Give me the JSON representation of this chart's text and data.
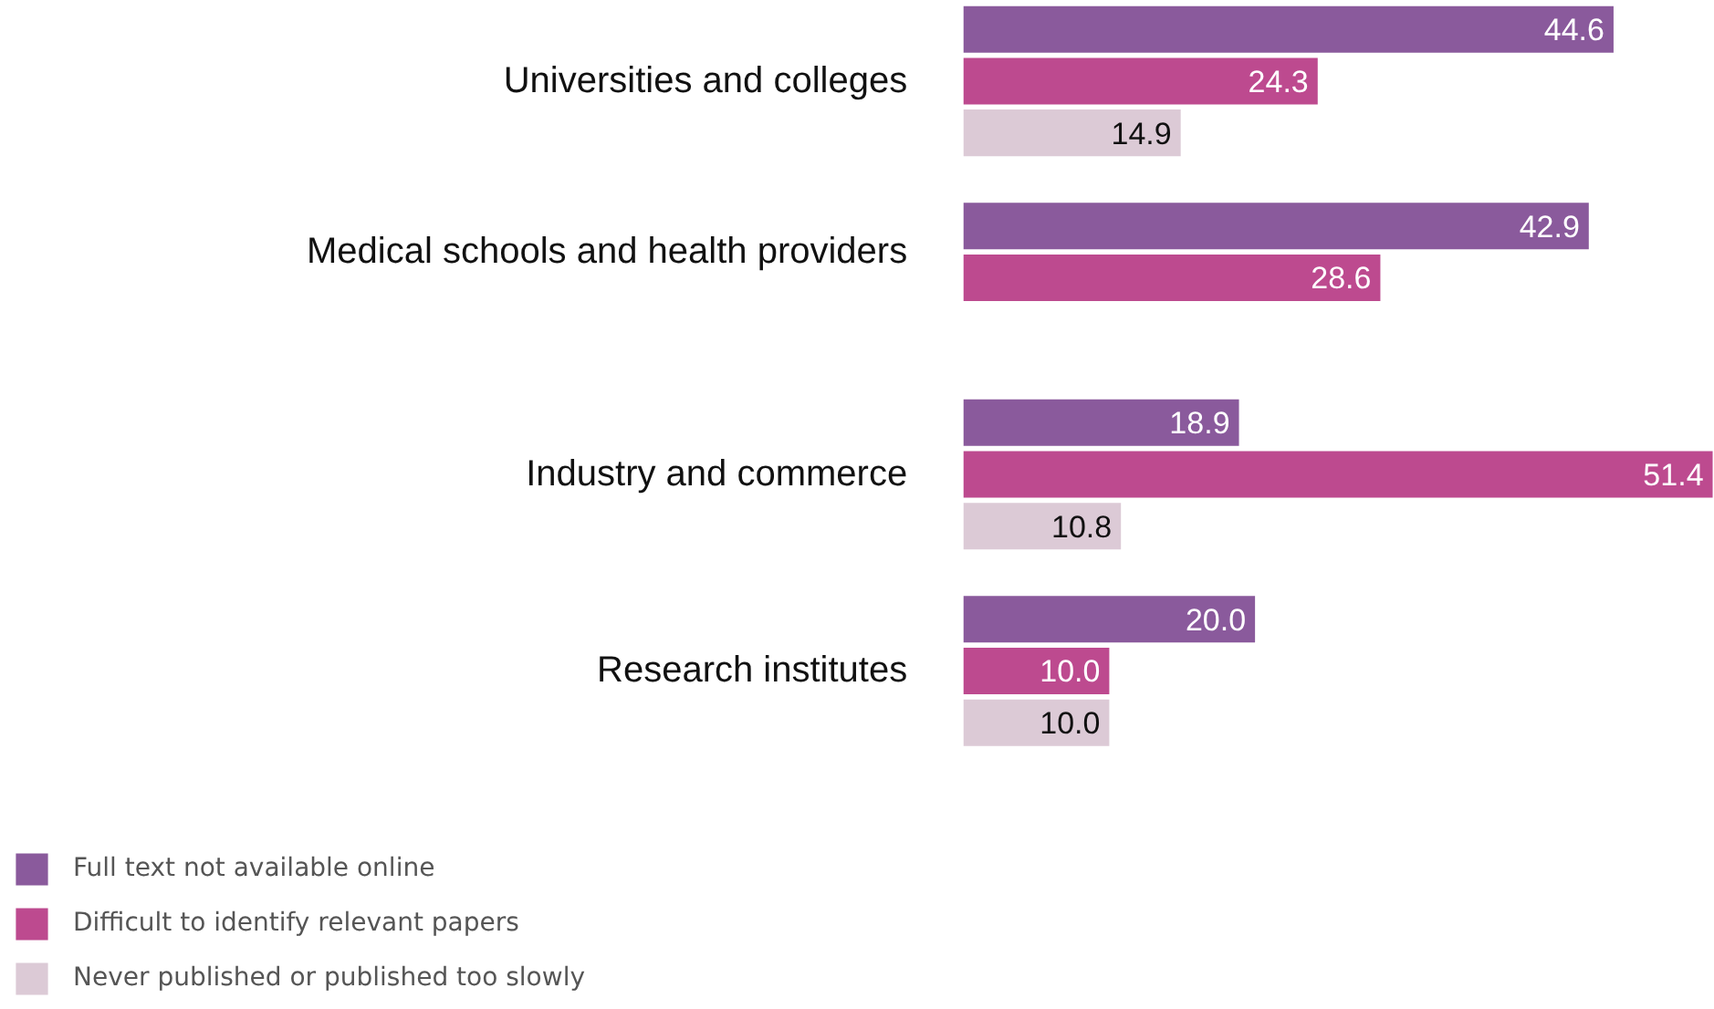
{
  "chart_data": {
    "type": "bar",
    "orientation": "horizontal",
    "legend": "bottom left",
    "grid": false,
    "categories": [
      "Universities and colleges",
      "Medical schools and health providers",
      "Industry and commerce",
      "Research institutes"
    ],
    "series": [
      {
        "name": "Full text not available online",
        "color": "#8a5a9c",
        "values": [
          44.6,
          42.9,
          18.9,
          20.0
        ],
        "value_labels": [
          "44.6",
          "42.9",
          "18.9",
          "20.0"
        ]
      },
      {
        "name": "Difficult to identify relevant papers",
        "color": "#bd4a8f",
        "values": [
          24.3,
          28.6,
          51.4,
          10.0
        ],
        "value_labels": [
          "24.3",
          "28.6",
          "51.4",
          "10.0"
        ]
      },
      {
        "name": "Never published or published too slowly",
        "color": "#dccad6",
        "values": [
          14.9,
          null,
          10.8,
          10.0
        ],
        "value_labels": [
          "14.9",
          null,
          "10.8",
          "10.0"
        ]
      }
    ]
  }
}
